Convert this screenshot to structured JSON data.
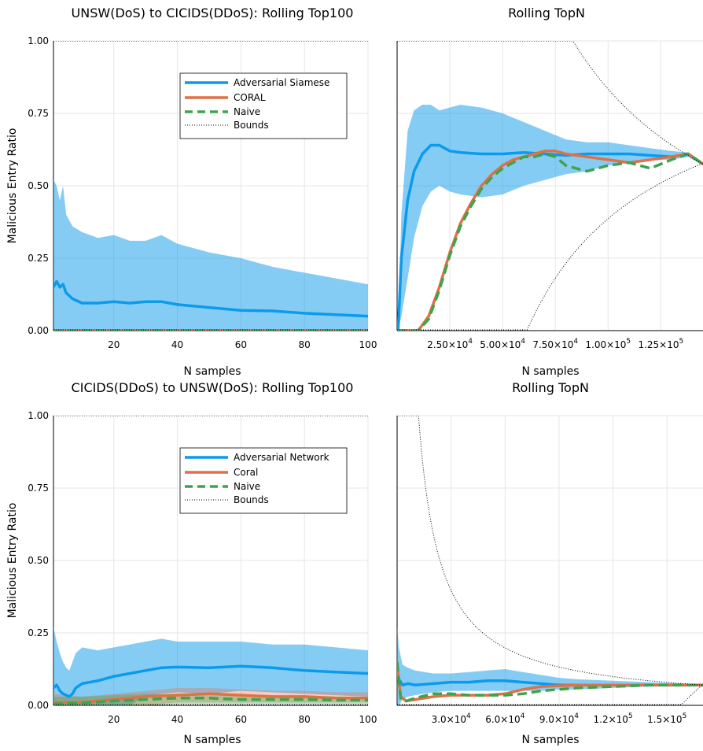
{
  "chart_data": [
    {
      "id": "p1",
      "type": "line",
      "title": "UNSW(DoS) to CICIDS(DDoS): Rolling Top100",
      "xlabel": "N samples",
      "ylabel": "Malicious Entry Ratio",
      "xlim": [
        1,
        100
      ],
      "ylim": [
        0,
        1
      ],
      "xticks": [
        20,
        40,
        60,
        80,
        100
      ],
      "xtick_labels": [
        "20",
        "40",
        "60",
        "80",
        "100"
      ],
      "yticks": [
        0,
        0.25,
        0.5,
        0.75,
        1.0
      ],
      "ytick_labels": [
        "0.00",
        "0.25",
        "0.50",
        "0.75",
        "1.00"
      ],
      "grid": true,
      "legend_position": "top-right",
      "legend": [
        "Adversarial Siamese",
        "CORAL",
        "Naive",
        "Bounds"
      ],
      "series": [
        {
          "name": "Adversarial Siamese",
          "color": "#0c9aea",
          "style": "solid",
          "x": [
            1,
            2,
            3,
            4,
            5,
            7,
            10,
            15,
            20,
            25,
            30,
            35,
            40,
            50,
            60,
            70,
            80,
            90,
            100
          ],
          "y": [
            0.15,
            0.17,
            0.15,
            0.16,
            0.13,
            0.11,
            0.095,
            0.095,
            0.1,
            0.095,
            0.1,
            0.1,
            0.09,
            0.08,
            0.07,
            0.068,
            0.06,
            0.055,
            0.05
          ],
          "band_x": [
            1,
            2,
            3,
            4,
            5,
            7,
            10,
            15,
            20,
            25,
            30,
            35,
            40,
            50,
            60,
            70,
            80,
            90,
            100
          ],
          "band_upper": [
            0.52,
            0.5,
            0.45,
            0.5,
            0.4,
            0.36,
            0.34,
            0.32,
            0.33,
            0.31,
            0.31,
            0.33,
            0.3,
            0.27,
            0.25,
            0.22,
            0.2,
            0.18,
            0.16
          ],
          "band_lower": [
            0,
            0,
            0,
            0,
            0,
            0,
            0,
            0,
            0,
            0,
            0,
            0,
            0,
            0,
            0,
            0,
            0,
            0,
            0
          ]
        },
        {
          "name": "CORAL",
          "color": "#e26f46",
          "style": "solid",
          "x": [
            1,
            100
          ],
          "y": [
            0.0,
            0.0
          ]
        },
        {
          "name": "Naive",
          "color": "#3da44d",
          "style": "dashed",
          "x": [
            1,
            100
          ],
          "y": [
            0.0,
            0.0
          ]
        },
        {
          "name": "Bounds",
          "color": "#000000",
          "style": "dotted",
          "x": [
            1,
            100
          ],
          "y": [
            1.0,
            1.0
          ],
          "y2": [
            0.0,
            0.0
          ]
        }
      ]
    },
    {
      "id": "p2",
      "type": "line",
      "title": "Rolling TopN",
      "xlabel": "N samples",
      "xlim": [
        0,
        145000
      ],
      "ylim": [
        0,
        1
      ],
      "xticks": [
        25000,
        50000,
        75000,
        100000,
        125000
      ],
      "xtick_labels": [
        [
          "2.50×10",
          "4"
        ],
        [
          "5.00×10",
          "4"
        ],
        [
          "7.50×10",
          "4"
        ],
        [
          "1.00×10",
          "5"
        ],
        [
          "1.25×10",
          "5"
        ]
      ],
      "yticks": [
        0,
        0.25,
        0.5,
        0.75,
        1.0
      ],
      "grid": true,
      "series": [
        {
          "name": "Adversarial Siamese",
          "color": "#0c9aea",
          "style": "solid",
          "x": [
            500,
            2000,
            5000,
            8000,
            12000,
            16000,
            20000,
            25000,
            30000,
            40000,
            50000,
            60000,
            70000,
            80000,
            90000,
            100000,
            110000,
            120000,
            130000,
            138000,
            145000
          ],
          "y": [
            0.0,
            0.25,
            0.45,
            0.55,
            0.61,
            0.64,
            0.64,
            0.62,
            0.615,
            0.61,
            0.61,
            0.615,
            0.61,
            0.605,
            0.61,
            0.61,
            0.61,
            0.605,
            0.6,
            0.61,
            0.575
          ],
          "band_x": [
            500,
            2000,
            5000,
            8000,
            12000,
            16000,
            20000,
            25000,
            30000,
            40000,
            50000,
            60000,
            70000,
            80000,
            90000,
            100000,
            110000,
            120000,
            130000,
            138000,
            145000
          ],
          "band_upper": [
            0.0,
            0.4,
            0.69,
            0.76,
            0.78,
            0.78,
            0.76,
            0.77,
            0.78,
            0.77,
            0.75,
            0.72,
            0.69,
            0.66,
            0.65,
            0.65,
            0.64,
            0.63,
            0.62,
            0.615,
            0.58
          ],
          "band_lower": [
            0.0,
            0.05,
            0.18,
            0.32,
            0.43,
            0.48,
            0.5,
            0.48,
            0.47,
            0.46,
            0.47,
            0.5,
            0.52,
            0.54,
            0.55,
            0.57,
            0.58,
            0.59,
            0.59,
            0.6,
            0.57
          ]
        },
        {
          "name": "CORAL",
          "color": "#e26f46",
          "style": "solid",
          "x": [
            0,
            10000,
            15000,
            20000,
            25000,
            30000,
            35000,
            40000,
            45000,
            50000,
            55000,
            60000,
            65000,
            70000,
            75000,
            80000,
            90000,
            100000,
            110000,
            120000,
            130000,
            138000,
            145000
          ],
          "y": [
            0.0,
            0.0,
            0.05,
            0.15,
            0.27,
            0.37,
            0.44,
            0.5,
            0.54,
            0.57,
            0.59,
            0.6,
            0.61,
            0.62,
            0.62,
            0.61,
            0.6,
            0.59,
            0.58,
            0.59,
            0.6,
            0.61,
            0.575
          ]
        },
        {
          "name": "Naive",
          "color": "#3da44d",
          "style": "dashed",
          "x": [
            0,
            10000,
            15000,
            20000,
            25000,
            30000,
            35000,
            40000,
            45000,
            50000,
            55000,
            60000,
            65000,
            70000,
            75000,
            80000,
            90000,
            100000,
            110000,
            120000,
            130000,
            138000,
            145000
          ],
          "y": [
            0.0,
            0.0,
            0.04,
            0.14,
            0.26,
            0.36,
            0.43,
            0.49,
            0.53,
            0.56,
            0.58,
            0.6,
            0.6,
            0.61,
            0.6,
            0.57,
            0.55,
            0.57,
            0.58,
            0.56,
            0.59,
            0.61,
            0.575
          ]
        },
        {
          "name": "Bounds",
          "color": "#000000",
          "style": "dotted"
        }
      ]
    },
    {
      "id": "p3",
      "type": "line",
      "title": "CICIDS(DDoS) to UNSW(DoS): Rolling Top100",
      "xlabel": "N samples",
      "ylabel": "Malicious Entry Ratio",
      "xlim": [
        1,
        100
      ],
      "ylim": [
        0,
        1
      ],
      "xticks": [
        20,
        40,
        60,
        80,
        100
      ],
      "xtick_labels": [
        "20",
        "40",
        "60",
        "80",
        "100"
      ],
      "yticks": [
        0,
        0.25,
        0.5,
        0.75,
        1.0
      ],
      "ytick_labels": [
        "0.00",
        "0.25",
        "0.50",
        "0.75",
        "1.00"
      ],
      "grid": true,
      "legend_position": "top-right",
      "legend": [
        "Adversarial Network",
        "Coral",
        "Naive",
        "Bounds"
      ],
      "series": [
        {
          "name": "Adversarial Network",
          "color": "#0c9aea",
          "style": "solid",
          "x": [
            1,
            2,
            3,
            4,
            5,
            6,
            7,
            8,
            10,
            15,
            20,
            25,
            30,
            35,
            40,
            50,
            60,
            70,
            80,
            90,
            100
          ],
          "y": [
            0.06,
            0.07,
            0.05,
            0.04,
            0.035,
            0.03,
            0.04,
            0.06,
            0.075,
            0.085,
            0.1,
            0.11,
            0.12,
            0.13,
            0.132,
            0.13,
            0.135,
            0.13,
            0.12,
            0.115,
            0.11
          ],
          "band_x": [
            1,
            2,
            3,
            4,
            5,
            6,
            7,
            8,
            10,
            15,
            20,
            25,
            30,
            35,
            40,
            50,
            60,
            70,
            80,
            90,
            100
          ],
          "band_upper": [
            0.27,
            0.22,
            0.18,
            0.15,
            0.13,
            0.12,
            0.15,
            0.18,
            0.2,
            0.19,
            0.2,
            0.21,
            0.22,
            0.23,
            0.22,
            0.22,
            0.22,
            0.21,
            0.21,
            0.2,
            0.19
          ],
          "band_lower": [
            0,
            0,
            0,
            0,
            0,
            0,
            0,
            0,
            0,
            0,
            0,
            0,
            0.03,
            0.04,
            0.045,
            0.04,
            0.05,
            0.045,
            0.04,
            0.035,
            0.03
          ]
        },
        {
          "name": "Coral",
          "color": "#e26f46",
          "style": "solid",
          "x": [
            1,
            10,
            20,
            30,
            40,
            50,
            60,
            70,
            80,
            90,
            100
          ],
          "y": [
            0.01,
            0.01,
            0.02,
            0.03,
            0.035,
            0.04,
            0.035,
            0.03,
            0.03,
            0.025,
            0.025
          ],
          "band_x": [
            1,
            10,
            20,
            30,
            40,
            50,
            60,
            70,
            80,
            90,
            100
          ],
          "band_upper": [
            0.04,
            0.03,
            0.04,
            0.05,
            0.06,
            0.06,
            0.055,
            0.05,
            0.05,
            0.045,
            0.045
          ],
          "band_lower": [
            0,
            0,
            0,
            0,
            0.01,
            0.01,
            0.01,
            0.01,
            0.01,
            0.01,
            0.01
          ]
        },
        {
          "name": "Naive",
          "color": "#3da44d",
          "style": "dashed",
          "x": [
            1,
            10,
            20,
            30,
            40,
            50,
            60,
            70,
            80,
            90,
            100
          ],
          "y": [
            0.005,
            0.008,
            0.015,
            0.02,
            0.025,
            0.025,
            0.02,
            0.02,
            0.02,
            0.018,
            0.018
          ],
          "band_x": [
            1,
            10,
            20,
            30,
            40,
            50,
            60,
            70,
            80,
            90,
            100
          ],
          "band_upper": [
            0.03,
            0.03,
            0.035,
            0.04,
            0.04,
            0.04,
            0.035,
            0.035,
            0.035,
            0.03,
            0.03
          ],
          "band_lower": [
            0,
            0,
            0,
            0,
            0.005,
            0.005,
            0.005,
            0.005,
            0.005,
            0.005,
            0.005
          ]
        },
        {
          "name": "Bounds",
          "color": "#000000",
          "style": "dotted",
          "x": [
            1,
            100
          ],
          "y": [
            1.0,
            1.0
          ],
          "y2": [
            0.0,
            0.0
          ]
        }
      ]
    },
    {
      "id": "p4",
      "type": "line",
      "title": "Rolling TopN",
      "xlabel": "N samples",
      "xlim": [
        0,
        170000
      ],
      "ylim": [
        0,
        1
      ],
      "xticks": [
        30000,
        60000,
        90000,
        120000,
        150000
      ],
      "xtick_labels": [
        [
          "3.0×10",
          "4"
        ],
        [
          "6.0×10",
          "4"
        ],
        [
          "9.0×10",
          "4"
        ],
        [
          "1.2×10",
          "5"
        ],
        [
          "1.5×10",
          "5"
        ]
      ],
      "yticks": [
        0,
        0.25,
        0.5,
        0.75,
        1.0
      ],
      "grid": true,
      "series": [
        {
          "name": "Adversarial Network",
          "color": "#0c9aea",
          "style": "solid",
          "x": [
            0,
            1000,
            3000,
            6000,
            10000,
            20000,
            30000,
            40000,
            50000,
            60000,
            70000,
            80000,
            90000,
            100000,
            120000,
            140000,
            160000,
            170000
          ],
          "y": [
            0.1,
            0.09,
            0.07,
            0.075,
            0.07,
            0.075,
            0.08,
            0.08,
            0.085,
            0.085,
            0.08,
            0.075,
            0.07,
            0.07,
            0.07,
            0.07,
            0.07,
            0.07
          ],
          "band_x": [
            0,
            1000,
            3000,
            6000,
            10000,
            20000,
            30000,
            40000,
            50000,
            60000,
            70000,
            80000,
            90000,
            100000,
            120000,
            140000,
            160000,
            170000
          ],
          "band_upper": [
            0.27,
            0.2,
            0.14,
            0.13,
            0.12,
            0.11,
            0.11,
            0.115,
            0.12,
            0.125,
            0.115,
            0.105,
            0.095,
            0.09,
            0.085,
            0.08,
            0.075,
            0.075
          ],
          "band_lower": [
            0.0,
            0.0,
            0.02,
            0.03,
            0.035,
            0.045,
            0.05,
            0.05,
            0.05,
            0.05,
            0.05,
            0.05,
            0.055,
            0.055,
            0.06,
            0.065,
            0.065,
            0.065
          ]
        },
        {
          "name": "Coral",
          "color": "#e26f46",
          "style": "solid",
          "x": [
            0,
            2000,
            5000,
            10000,
            20000,
            30000,
            40000,
            50000,
            60000,
            70000,
            80000,
            100000,
            120000,
            140000,
            160000,
            170000
          ],
          "y": [
            0.14,
            0.03,
            0.015,
            0.02,
            0.03,
            0.035,
            0.035,
            0.035,
            0.04,
            0.055,
            0.065,
            0.07,
            0.07,
            0.07,
            0.07,
            0.07
          ]
        },
        {
          "name": "Naive",
          "color": "#3da44d",
          "style": "dashed",
          "x": [
            0,
            2000,
            5000,
            10000,
            20000,
            30000,
            40000,
            50000,
            60000,
            70000,
            80000,
            100000,
            120000,
            140000,
            160000,
            170000
          ],
          "y": [
            0.15,
            0.02,
            0.015,
            0.025,
            0.04,
            0.04,
            0.035,
            0.035,
            0.035,
            0.04,
            0.05,
            0.06,
            0.065,
            0.07,
            0.07,
            0.07
          ]
        },
        {
          "name": "Bounds",
          "color": "#000000",
          "style": "dotted"
        }
      ]
    }
  ]
}
